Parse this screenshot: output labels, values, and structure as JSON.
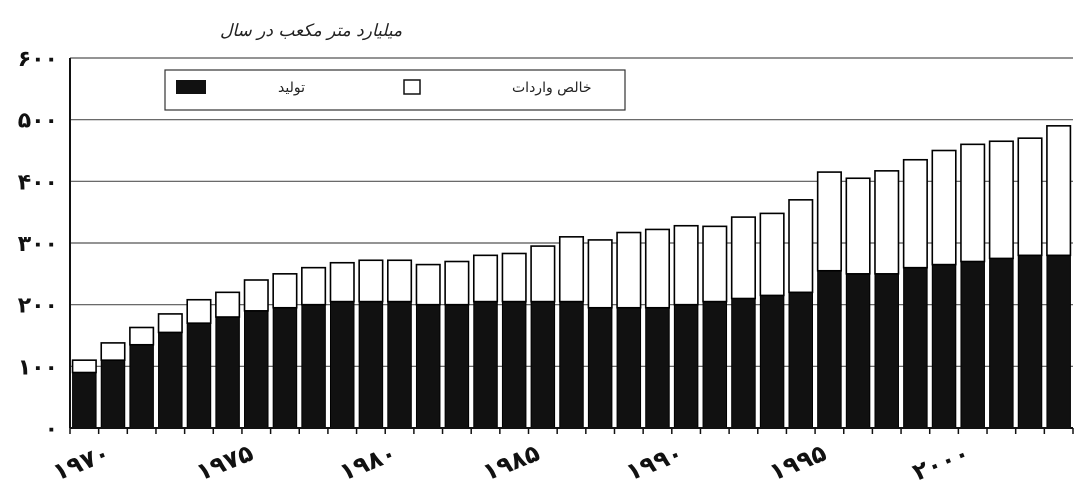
{
  "chart_data": {
    "type": "bar",
    "stacked": true,
    "y_unit_label": "میلیارد متر مکعب در سال",
    "ylim": [
      0,
      600
    ],
    "y_ticks": [
      {
        "value": 0,
        "label": "۰"
      },
      {
        "value": 100,
        "label": "۱۰۰"
      },
      {
        "value": 200,
        "label": "۲۰۰"
      },
      {
        "value": 300,
        "label": "۳۰۰"
      },
      {
        "value": 400,
        "label": "۴۰۰"
      },
      {
        "value": 500,
        "label": "۵۰۰"
      },
      {
        "value": 600,
        "label": "۶۰۰"
      }
    ],
    "x": [
      1970,
      1971,
      1972,
      1973,
      1974,
      1975,
      1976,
      1977,
      1978,
      1979,
      1980,
      1981,
      1982,
      1983,
      1984,
      1985,
      1986,
      1987,
      1988,
      1989,
      1990,
      1991,
      1992,
      1993,
      1994,
      1995,
      1996,
      1997,
      1998,
      1999,
      2000,
      2001,
      2002,
      2003,
      2004
    ],
    "x_ticks": [
      {
        "value": 1970,
        "label": "۱۹۷۰"
      },
      {
        "value": 1975,
        "label": "۱۹۷۵"
      },
      {
        "value": 1980,
        "label": "۱۹۸۰"
      },
      {
        "value": 1985,
        "label": "۱۹۸۵"
      },
      {
        "value": 1990,
        "label": "۱۹۹۰"
      },
      {
        "value": 1995,
        "label": "۱۹۹۵"
      },
      {
        "value": 2000,
        "label": "۲۰۰۰"
      }
    ],
    "series": [
      {
        "name": "تولید",
        "color": "#111111",
        "values": [
          90,
          110,
          135,
          155,
          170,
          180,
          190,
          195,
          200,
          205,
          205,
          205,
          200,
          200,
          205,
          205,
          205,
          205,
          195,
          195,
          195,
          200,
          205,
          210,
          215,
          220,
          255,
          250,
          250,
          260,
          265,
          270,
          275,
          280,
          280
        ]
      },
      {
        "name": "خالص واردات",
        "color": "#ffffff",
        "values": [
          20,
          28,
          28,
          30,
          38,
          40,
          50,
          55,
          60,
          63,
          67,
          67,
          65,
          70,
          75,
          78,
          90,
          105,
          110,
          122,
          127,
          128,
          122,
          132,
          133,
          150,
          160,
          155,
          167,
          175,
          185,
          190,
          190,
          190,
          210
        ]
      }
    ],
    "legend_position": "top-left",
    "grid": true
  }
}
